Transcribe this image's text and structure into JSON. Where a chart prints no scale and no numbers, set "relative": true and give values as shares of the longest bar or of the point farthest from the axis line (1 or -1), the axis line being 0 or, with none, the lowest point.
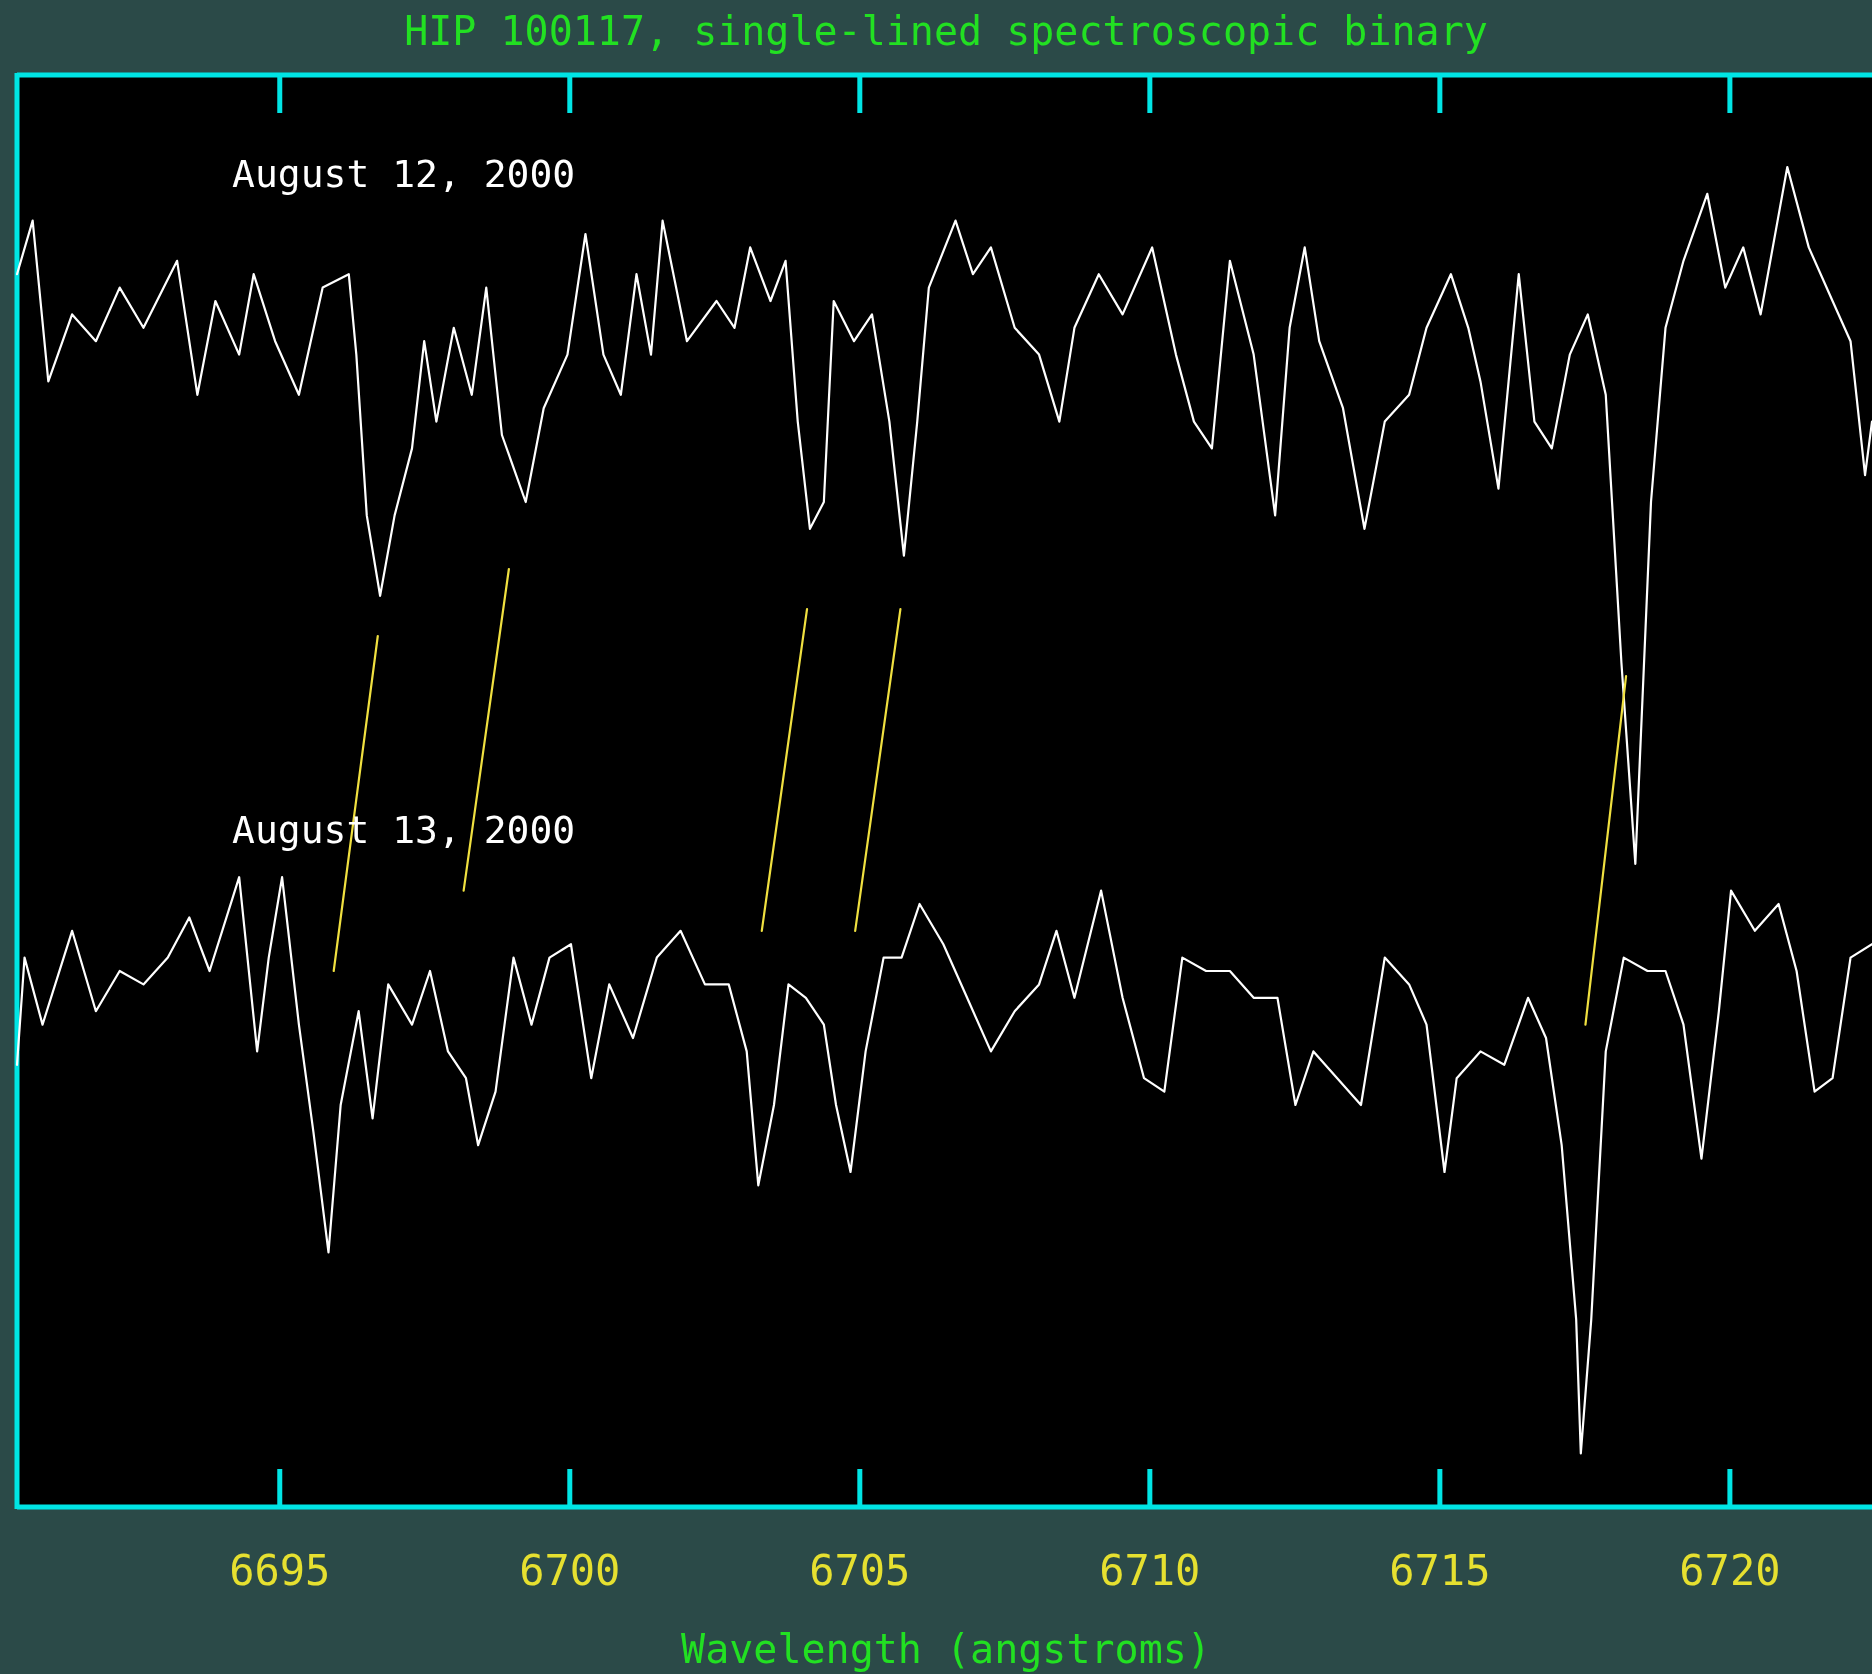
{
  "chart_data": {
    "type": "line",
    "title": "HIP 100117, single-lined spectroscopic binary",
    "xlabel": "Wavelength (angstroms)",
    "xlim": [
      6690.47,
      6722.45
    ],
    "xticks": [
      6695,
      6700,
      6705,
      6710,
      6715,
      6720
    ],
    "relative": true,
    "series": [
      {
        "name": "August 12, 2000",
        "color": "#ffffff",
        "x": [
          6690.47,
          6690.74,
          6691.01,
          6691.42,
          6691.83,
          6692.24,
          6692.65,
          6693.23,
          6693.58,
          6693.89,
          6694.3,
          6694.55,
          6694.92,
          6695.33,
          6695.74,
          6696.19,
          6696.32,
          6696.5,
          6696.73,
          6696.98,
          6697.28,
          6697.49,
          6697.7,
          6698.0,
          6698.31,
          6698.56,
          6698.83,
          6699.24,
          6699.55,
          6699.96,
          6700.27,
          6700.58,
          6700.88,
          6701.15,
          6701.4,
          6701.6,
          6702.02,
          6702.53,
          6702.84,
          6703.11,
          6703.46,
          6703.72,
          6703.93,
          6704.14,
          6704.38,
          6704.55,
          6704.9,
          6705.21,
          6705.51,
          6705.76,
          6705.99,
          6706.19,
          6706.65,
          6706.95,
          6707.26,
          6707.67,
          6708.09,
          6708.44,
          6708.7,
          6709.12,
          6709.53,
          6710.04,
          6710.45,
          6710.76,
          6711.07,
          6711.38,
          6711.79,
          6712.16,
          6712.41,
          6712.67,
          6712.92,
          6713.33,
          6713.7,
          6714.05,
          6714.47,
          6714.77,
          6715.19,
          6715.49,
          6715.7,
          6716.01,
          6716.36,
          6716.63,
          6716.93,
          6717.24,
          6717.55,
          6717.86,
          6718.13,
          6718.37,
          6718.64,
          6718.89,
          6719.2,
          6719.61,
          6719.92,
          6720.23,
          6720.53,
          6720.99,
          6721.36,
          6721.77,
          6722.08,
          6722.33,
          6722.45
        ],
        "values": [
          0.92,
          0.96,
          0.84,
          0.89,
          0.87,
          0.91,
          0.88,
          0.93,
          0.83,
          0.9,
          0.86,
          0.92,
          0.87,
          0.83,
          0.91,
          0.92,
          0.86,
          0.74,
          0.68,
          0.74,
          0.79,
          0.87,
          0.81,
          0.88,
          0.83,
          0.91,
          0.8,
          0.75,
          0.82,
          0.86,
          0.95,
          0.86,
          0.83,
          0.92,
          0.86,
          0.96,
          0.87,
          0.9,
          0.88,
          0.94,
          0.9,
          0.93,
          0.81,
          0.73,
          0.75,
          0.9,
          0.87,
          0.89,
          0.81,
          0.71,
          0.81,
          0.91,
          0.96,
          0.92,
          0.94,
          0.88,
          0.86,
          0.81,
          0.88,
          0.92,
          0.89,
          0.94,
          0.86,
          0.81,
          0.79,
          0.93,
          0.86,
          0.74,
          0.88,
          0.94,
          0.87,
          0.82,
          0.73,
          0.81,
          0.83,
          0.88,
          0.92,
          0.88,
          0.84,
          0.76,
          0.92,
          0.81,
          0.79,
          0.86,
          0.89,
          0.83,
          0.63,
          0.48,
          0.75,
          0.88,
          0.93,
          0.98,
          0.91,
          0.94,
          0.89,
          1.0,
          0.94,
          0.9,
          0.87,
          0.77,
          0.81
        ]
      },
      {
        "name": "August 13, 2000",
        "color": "#ffffff",
        "x": [
          6690.47,
          6690.6,
          6690.91,
          6691.42,
          6691.83,
          6692.24,
          6692.65,
          6693.07,
          6693.44,
          6693.79,
          6694.3,
          6694.61,
          6694.81,
          6695.04,
          6695.33,
          6695.58,
          6695.84,
          6696.05,
          6696.36,
          6696.6,
          6696.87,
          6697.28,
          6697.59,
          6697.9,
          6698.21,
          6698.42,
          6698.72,
          6699.03,
          6699.34,
          6699.65,
          6700.02,
          6700.37,
          6700.68,
          6701.09,
          6701.5,
          6701.91,
          6702.33,
          6702.74,
          6703.05,
          6703.25,
          6703.52,
          6703.77,
          6704.07,
          6704.38,
          6704.59,
          6704.84,
          6705.1,
          6705.41,
          6705.72,
          6706.03,
          6706.44,
          6706.85,
          6707.26,
          6707.67,
          6708.09,
          6708.39,
          6708.7,
          6709.16,
          6709.53,
          6709.9,
          6710.25,
          6710.56,
          6710.97,
          6711.38,
          6711.79,
          6712.2,
          6712.51,
          6712.82,
          6713.23,
          6713.64,
          6714.05,
          6714.47,
          6714.77,
          6715.08,
          6715.29,
          6715.7,
          6716.11,
          6716.52,
          6716.83,
          6717.1,
          6717.35,
          6717.43,
          6717.61,
          6717.86,
          6718.17,
          6718.58,
          6718.89,
          6719.2,
          6719.51,
          6719.81,
          6720.02,
          6720.43,
          6720.84,
          6721.15,
          6721.46,
          6721.77,
          6722.08,
          6722.45
        ],
        "values": [
          0.33,
          0.41,
          0.36,
          0.43,
          0.37,
          0.4,
          0.39,
          0.41,
          0.44,
          0.4,
          0.47,
          0.34,
          0.41,
          0.47,
          0.36,
          0.28,
          0.19,
          0.3,
          0.37,
          0.29,
          0.39,
          0.36,
          0.4,
          0.34,
          0.32,
          0.27,
          0.31,
          0.41,
          0.36,
          0.41,
          0.42,
          0.32,
          0.39,
          0.35,
          0.41,
          0.43,
          0.39,
          0.39,
          0.34,
          0.24,
          0.3,
          0.39,
          0.38,
          0.36,
          0.3,
          0.25,
          0.34,
          0.41,
          0.41,
          0.45,
          0.42,
          0.38,
          0.34,
          0.37,
          0.39,
          0.43,
          0.38,
          0.46,
          0.38,
          0.32,
          0.31,
          0.41,
          0.4,
          0.4,
          0.38,
          0.38,
          0.3,
          0.34,
          0.32,
          0.3,
          0.41,
          0.39,
          0.36,
          0.25,
          0.32,
          0.34,
          0.33,
          0.38,
          0.35,
          0.27,
          0.14,
          0.04,
          0.14,
          0.34,
          0.41,
          0.4,
          0.4,
          0.36,
          0.26,
          0.37,
          0.46,
          0.43,
          0.45,
          0.4,
          0.31,
          0.32,
          0.41,
          0.42
        ]
      },
      {
        "color": "#f0e040",
        "x": [
          6696.69,
          6695.93
        ],
        "values": [
          0.65,
          0.4
        ]
      },
      {
        "color": "#f0e040",
        "x": [
          6698.95,
          6698.17
        ],
        "values": [
          0.7,
          0.46
        ]
      },
      {
        "color": "#f0e040",
        "x": [
          6704.09,
          6703.31
        ],
        "values": [
          0.67,
          0.43
        ]
      },
      {
        "color": "#f0e040",
        "x": [
          6705.7,
          6704.92
        ],
        "values": [
          0.67,
          0.43
        ]
      },
      {
        "color": "#f0e040",
        "x": [
          6718.21,
          6717.51
        ],
        "values": [
          0.62,
          0.36
        ]
      }
    ]
  }
}
